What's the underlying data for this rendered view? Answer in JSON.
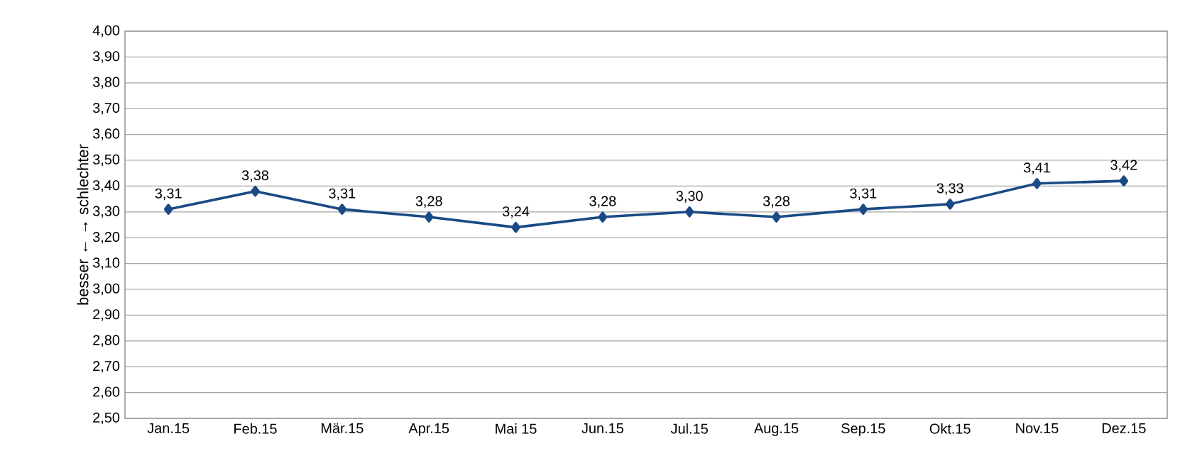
{
  "chart_data": {
    "type": "line",
    "ylabel": "besser ← → schlechter",
    "categories": [
      "Jan.15",
      "Feb.15",
      "Mär.15",
      "Apr.15",
      "Mai 15",
      "Jun.15",
      "Jul.15",
      "Aug.15",
      "Sep.15",
      "Okt.15",
      "Nov.15",
      "Dez.15"
    ],
    "series": [
      {
        "color": "#1a4a86",
        "values": [
          3.31,
          3.38,
          3.31,
          3.28,
          3.24,
          3.28,
          3.3,
          3.28,
          3.31,
          3.33,
          3.41,
          3.42
        ],
        "value_labels": [
          "3,31",
          "3,38",
          "3,31",
          "3,28",
          "3,24",
          "3,28",
          "3,30",
          "3,28",
          "3,31",
          "3,33",
          "3,41",
          "3,42"
        ]
      }
    ],
    "ylim": [
      2.5,
      4.0
    ],
    "yticks": [
      {
        "value": 2.5,
        "label": "2,50"
      },
      {
        "value": 2.6,
        "label": "2,60"
      },
      {
        "value": 2.7,
        "label": "2,70"
      },
      {
        "value": 2.8,
        "label": "2,80"
      },
      {
        "value": 2.9,
        "label": "2,90"
      },
      {
        "value": 3.0,
        "label": "3,00"
      },
      {
        "value": 3.1,
        "label": "3,10"
      },
      {
        "value": 3.2,
        "label": "3,20"
      },
      {
        "value": 3.3,
        "label": "3,30"
      },
      {
        "value": 3.4,
        "label": "3,40"
      },
      {
        "value": 3.5,
        "label": "3,50"
      },
      {
        "value": 3.6,
        "label": "3,60"
      },
      {
        "value": 3.7,
        "label": "3,70"
      },
      {
        "value": 3.8,
        "label": "3,80"
      },
      {
        "value": 3.9,
        "label": "3,90"
      },
      {
        "value": 4.0,
        "label": "4,00"
      }
    ],
    "grid": "y",
    "marker": "diamond",
    "line_style": "solid"
  }
}
